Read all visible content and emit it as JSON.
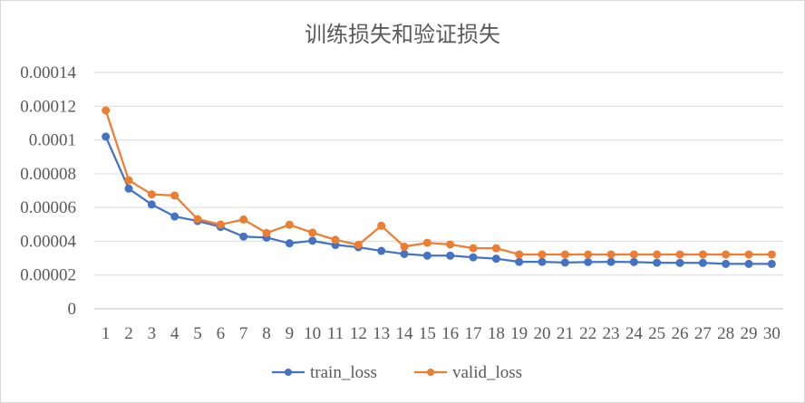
{
  "chart_data": {
    "type": "line",
    "title": "训练损失和验证损失",
    "xlabel": "",
    "ylabel": "",
    "categories": [
      "1",
      "2",
      "3",
      "4",
      "5",
      "6",
      "7",
      "8",
      "9",
      "10",
      "11",
      "12",
      "13",
      "14",
      "15",
      "16",
      "17",
      "18",
      "19",
      "20",
      "21",
      "22",
      "23",
      "24",
      "25",
      "26",
      "27",
      "28",
      "29",
      "30"
    ],
    "ylim": [
      0,
      0.00014
    ],
    "yticks": [
      "0.00014",
      "0.00012",
      "0.0001",
      "0.00008",
      "0.00006",
      "0.00004",
      "0.00002",
      "0"
    ],
    "grid": true,
    "legend_position": "bottom",
    "series": [
      {
        "name": "train_loss",
        "color": "#4472c4",
        "values": [
          0.000102,
          7.12e-05,
          6.18e-05,
          5.47e-05,
          5.2e-05,
          4.85e-05,
          4.28e-05,
          4.22e-05,
          3.88e-05,
          4.03e-05,
          3.78e-05,
          3.65e-05,
          3.43e-05,
          3.25e-05,
          3.15e-05,
          3.15e-05,
          3.05e-05,
          2.97e-05,
          2.78e-05,
          2.78e-05,
          2.74e-05,
          2.77e-05,
          2.78e-05,
          2.77e-05,
          2.73e-05,
          2.72e-05,
          2.72e-05,
          2.66e-05,
          2.66e-05,
          2.66e-05
        ]
      },
      {
        "name": "valid_loss",
        "color": "#ed7d31",
        "values": [
          0.0001175,
          7.62e-05,
          6.78e-05,
          6.71e-05,
          5.31e-05,
          4.99e-05,
          5.29e-05,
          4.49e-05,
          4.98e-05,
          4.51e-05,
          4.09e-05,
          3.79e-05,
          4.92e-05,
          3.68e-05,
          3.91e-05,
          3.81e-05,
          3.59e-05,
          3.59e-05,
          3.22e-05,
          3.22e-05,
          3.22e-05,
          3.22e-05,
          3.22e-05,
          3.22e-05,
          3.22e-05,
          3.22e-05,
          3.22e-05,
          3.22e-05,
          3.22e-05,
          3.22e-05
        ]
      }
    ]
  }
}
